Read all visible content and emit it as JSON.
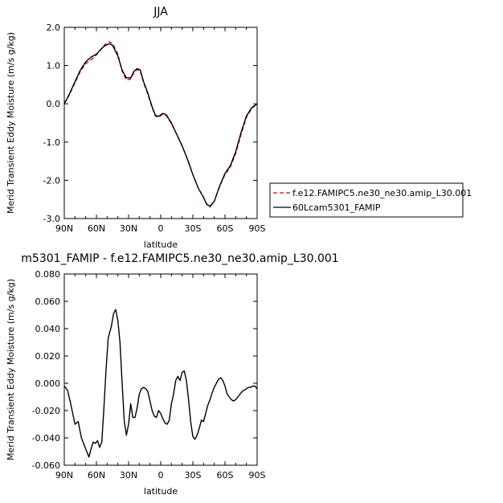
{
  "chart_data": [
    {
      "type": "line",
      "title": "JJA",
      "xlabel": "latitude",
      "ylabel": "Merid Transient Eddy Moisture (m/s g/kg)",
      "x_domain": [
        90,
        -90
      ],
      "ylim": [
        -3.0,
        2.0
      ],
      "xticks": [
        {
          "value": 90,
          "label": "90N"
        },
        {
          "value": 60,
          "label": "60N"
        },
        {
          "value": 30,
          "label": "30N"
        },
        {
          "value": 0,
          "label": "0"
        },
        {
          "value": -30,
          "label": "30S"
        },
        {
          "value": -60,
          "label": "60S"
        },
        {
          "value": -90,
          "label": "90S"
        }
      ],
      "yticks": [
        {
          "value": 2.0,
          "label": "2.0"
        },
        {
          "value": 1.0,
          "label": "1.0"
        },
        {
          "value": 0.0,
          "label": "0.0"
        },
        {
          "value": -1.0,
          "label": "-1.0"
        },
        {
          "value": -2.0,
          "label": "-2.0"
        },
        {
          "value": -3.0,
          "label": "-3.0"
        }
      ],
      "legend_position": "right, outside plot",
      "series": [
        {
          "name": "f.e12.FAMIPC5.ne30_ne30.amip_L30.001",
          "color": "#cc0000",
          "dash": "dashed",
          "x": [
            90,
            85,
            80,
            75,
            70,
            65,
            60,
            55,
            52,
            48,
            45,
            40,
            36,
            32,
            28,
            25,
            22,
            19,
            16,
            12,
            8,
            5,
            2,
            -2,
            -5,
            -10,
            -15,
            -20,
            -25,
            -30,
            -35,
            -40,
            -43,
            -46,
            -50,
            -55,
            -60,
            -65,
            -70,
            -75,
            -80,
            -85,
            -88,
            -90
          ],
          "y": [
            0.0,
            0.25,
            0.55,
            0.85,
            1.05,
            1.15,
            1.28,
            1.45,
            1.55,
            1.62,
            1.58,
            1.3,
            0.85,
            0.62,
            0.65,
            0.82,
            0.9,
            0.85,
            0.55,
            0.25,
            -0.1,
            -0.32,
            -0.35,
            -0.27,
            -0.3,
            -0.52,
            -0.8,
            -1.1,
            -1.45,
            -1.85,
            -2.2,
            -2.45,
            -2.62,
            -2.7,
            -2.55,
            -2.15,
            -1.85,
            -1.65,
            -1.3,
            -0.8,
            -0.35,
            -0.12,
            -0.05,
            0.0
          ]
        },
        {
          "name": "60Lcam5301_FAMIP",
          "color": "#000000",
          "dash": "solid",
          "x": [
            90,
            85,
            80,
            75,
            70,
            65,
            60,
            55,
            52,
            48,
            45,
            40,
            36,
            32,
            28,
            25,
            22,
            19,
            16,
            12,
            8,
            5,
            2,
            -2,
            -5,
            -10,
            -15,
            -20,
            -25,
            -30,
            -35,
            -40,
            -43,
            -46,
            -50,
            -55,
            -60,
            -65,
            -70,
            -75,
            -80,
            -85,
            -88,
            -90
          ],
          "y": [
            0.0,
            0.27,
            0.58,
            0.88,
            1.1,
            1.22,
            1.3,
            1.45,
            1.52,
            1.57,
            1.53,
            1.25,
            0.88,
            0.68,
            0.68,
            0.85,
            0.92,
            0.88,
            0.58,
            0.28,
            -0.08,
            -0.3,
            -0.33,
            -0.25,
            -0.28,
            -0.5,
            -0.8,
            -1.1,
            -1.45,
            -1.85,
            -2.2,
            -2.45,
            -2.63,
            -2.68,
            -2.55,
            -2.15,
            -1.82,
            -1.62,
            -1.25,
            -0.75,
            -0.32,
            -0.1,
            -0.04,
            0.0
          ]
        }
      ]
    },
    {
      "type": "line",
      "title": "m5301_FAMIP - f.e12.FAMIPC5.ne30_ne30.amip_L30.001",
      "xlabel": "latitude",
      "ylabel": "Merid Transient Eddy Moisture (m/s g/kg)",
      "x_domain": [
        90,
        -90
      ],
      "ylim": [
        -0.06,
        0.08
      ],
      "xticks": [
        {
          "value": 90,
          "label": "90N"
        },
        {
          "value": 60,
          "label": "60N"
        },
        {
          "value": 30,
          "label": "30N"
        },
        {
          "value": 0,
          "label": "0"
        },
        {
          "value": -30,
          "label": "30S"
        },
        {
          "value": -60,
          "label": "60S"
        },
        {
          "value": -90,
          "label": "90S"
        }
      ],
      "yticks": [
        {
          "value": 0.08,
          "label": "0.080"
        },
        {
          "value": 0.06,
          "label": "0.060"
        },
        {
          "value": 0.04,
          "label": "0.040"
        },
        {
          "value": 0.02,
          "label": "0.020"
        },
        {
          "value": 0.0,
          "label": "0.000"
        },
        {
          "value": -0.02,
          "label": "-0.020"
        },
        {
          "value": -0.04,
          "label": "-0.040"
        },
        {
          "value": -0.06,
          "label": "-0.060"
        }
      ],
      "series": [
        {
          "color": "#000000",
          "dash": "solid",
          "x": [
            90,
            87,
            84,
            80,
            77,
            74,
            71,
            69,
            67,
            65,
            63,
            61,
            59,
            57,
            55,
            53,
            51,
            49,
            48,
            46,
            44,
            42,
            40,
            38,
            36,
            34,
            32,
            30,
            28,
            26,
            24,
            22,
            20,
            18,
            16,
            14,
            12,
            10,
            8,
            6,
            4,
            2,
            0,
            -2,
            -4,
            -6,
            -8,
            -10,
            -12,
            -14,
            -16,
            -18,
            -20,
            -22,
            -24,
            -26,
            -28,
            -30,
            -32,
            -34,
            -36,
            -38,
            -40,
            -42,
            -44,
            -46,
            -48,
            -50,
            -52,
            -54,
            -56,
            -58,
            -60,
            -62,
            -64,
            -66,
            -68,
            -70,
            -72,
            -74,
            -76,
            -78,
            -80,
            -82,
            -84,
            -86,
            -88,
            -90
          ],
          "y": [
            -0.002,
            -0.005,
            -0.015,
            -0.03,
            -0.028,
            -0.04,
            -0.046,
            -0.05,
            -0.054,
            -0.048,
            -0.043,
            -0.044,
            -0.042,
            -0.047,
            -0.043,
            -0.018,
            0.01,
            0.033,
            0.036,
            0.042,
            0.051,
            0.054,
            0.046,
            0.03,
            0.0,
            -0.028,
            -0.038,
            -0.03,
            -0.015,
            -0.025,
            -0.025,
            -0.018,
            -0.008,
            -0.004,
            -0.003,
            -0.004,
            -0.006,
            -0.013,
            -0.02,
            -0.024,
            -0.025,
            -0.02,
            -0.022,
            -0.026,
            -0.029,
            -0.03,
            -0.027,
            -0.015,
            -0.008,
            0.002,
            0.005,
            0.002,
            0.008,
            0.009,
            0.002,
            -0.012,
            -0.028,
            -0.039,
            -0.041,
            -0.038,
            -0.033,
            -0.027,
            -0.028,
            -0.022,
            -0.016,
            -0.012,
            -0.007,
            -0.003,
            0.0,
            0.003,
            0.004,
            0.002,
            -0.002,
            -0.008,
            -0.01,
            -0.012,
            -0.013,
            -0.012,
            -0.01,
            -0.008,
            -0.006,
            -0.005,
            -0.004,
            -0.003,
            -0.003,
            -0.002,
            -0.002,
            -0.004
          ]
        }
      ]
    }
  ]
}
